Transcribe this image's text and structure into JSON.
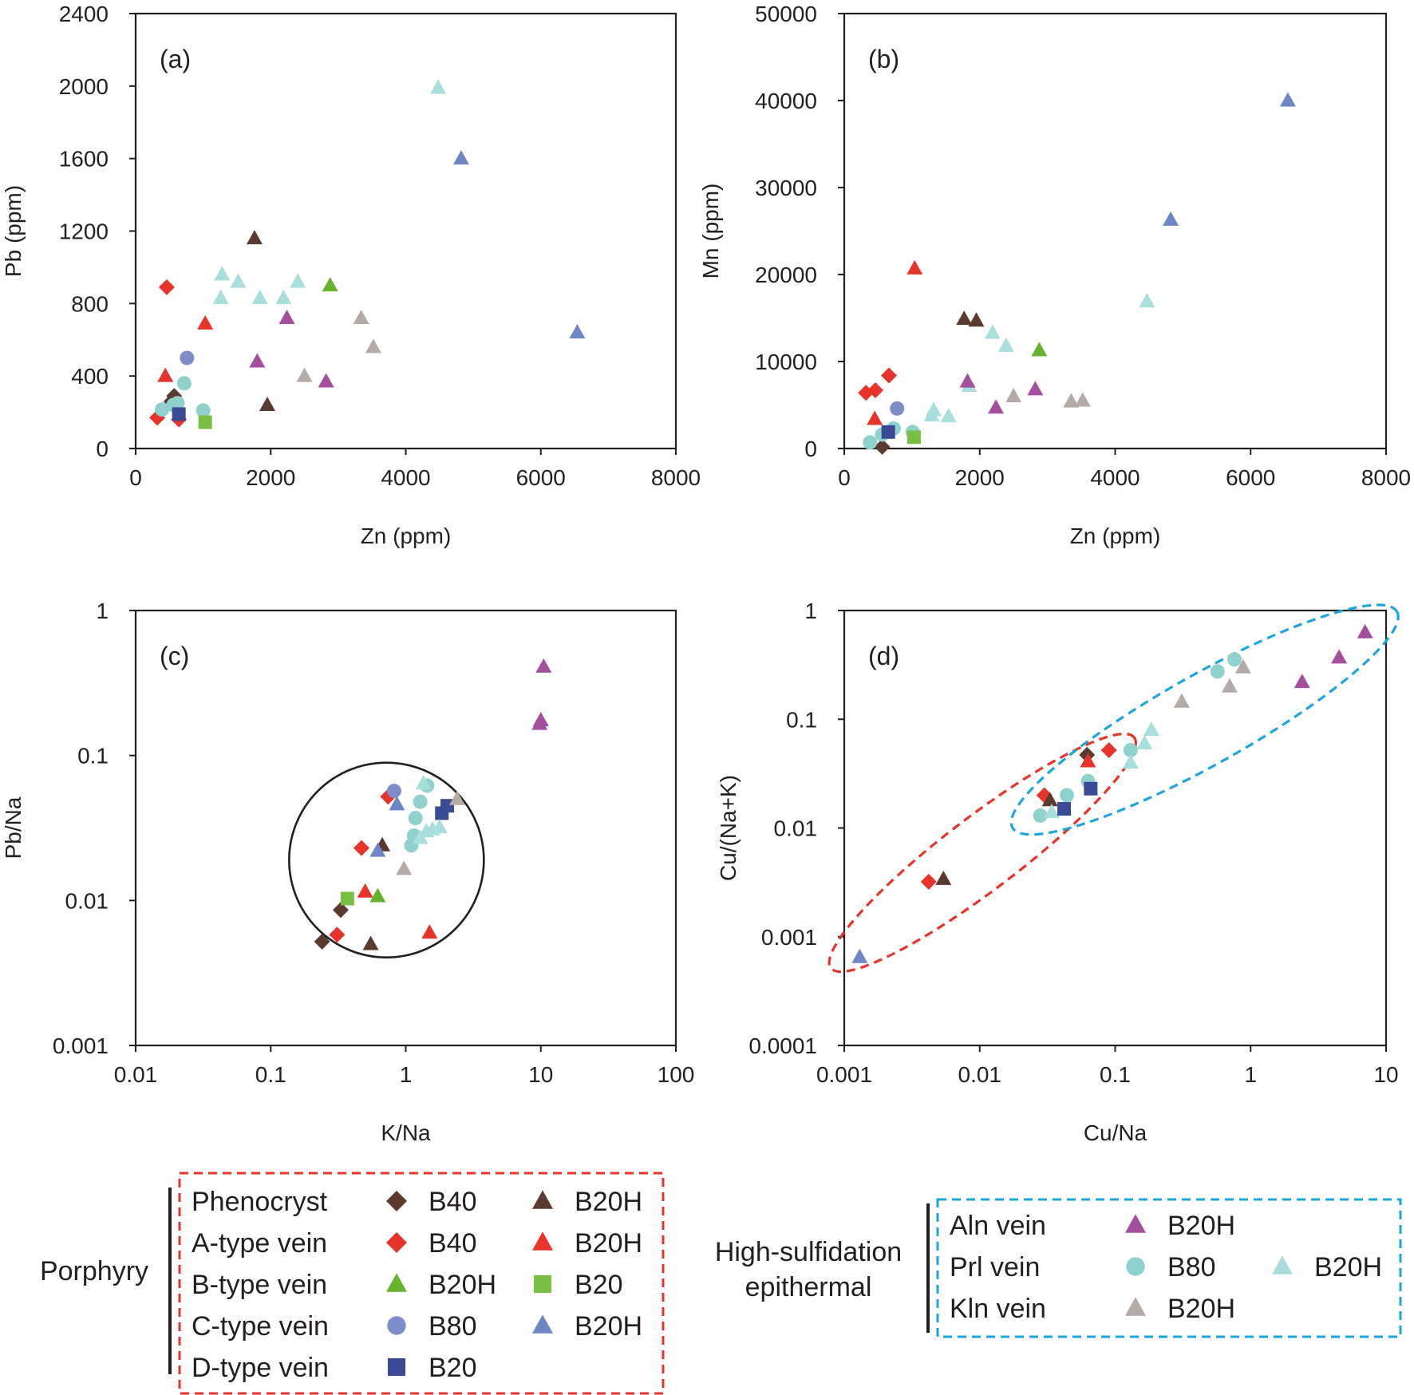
{
  "colors": {
    "phenocryst_b40": "#5b3a30",
    "a_b40": "#e8332a",
    "a_b20h": "#e8332a",
    "b_b20h": "#66b32e",
    "b_b20": "#7abf43",
    "c_b80": "#7d8dc9",
    "c_b20h": "#6f86c6",
    "d_b20": "#3a4a95",
    "phen_b20h": "#5b3a30",
    "aln_b20h": "#a34f9e",
    "prl_b80": "#8fd1cd",
    "prl_b20h": "#a8dedb",
    "kln_b20h": "#b6aaa6",
    "porphyry_box": "#e8332a",
    "epithermal_box": "#1ba6dd"
  },
  "chart_data": [
    {
      "id": "a",
      "type": "scatter",
      "panel_label": "(a)",
      "xlabel": "Zn (ppm)",
      "ylabel": "Pb (ppm)",
      "xlim": [
        0,
        8000
      ],
      "ylim": [
        0,
        2400
      ],
      "xscale": "linear",
      "yscale": "linear",
      "xticks": [
        "0",
        "2000",
        "4000",
        "6000",
        "8000"
      ],
      "yticks": [
        "0",
        "400",
        "800",
        "1200",
        "1600",
        "2000",
        "2400"
      ],
      "points": [
        {
          "x": 320,
          "y": 170,
          "m": "diamond",
          "c": "a_b40"
        },
        {
          "x": 640,
          "y": 160,
          "m": "diamond",
          "c": "a_b40"
        },
        {
          "x": 460,
          "y": 890,
          "m": "diamond",
          "c": "a_b40"
        },
        {
          "x": 530,
          "y": 260,
          "m": "diamond",
          "c": "phenocryst_b40"
        },
        {
          "x": 570,
          "y": 290,
          "m": "diamond",
          "c": "phenocryst_b40"
        },
        {
          "x": 440,
          "y": 400,
          "m": "triangle",
          "c": "a_b20h"
        },
        {
          "x": 1030,
          "y": 690,
          "m": "triangle",
          "c": "a_b20h"
        },
        {
          "x": 1760,
          "y": 1160,
          "m": "triangle",
          "c": "phen_b20h"
        },
        {
          "x": 1950,
          "y": 240,
          "m": "triangle",
          "c": "phen_b20h"
        },
        {
          "x": 560,
          "y": 240,
          "m": "circle",
          "c": "prl_b80"
        },
        {
          "x": 390,
          "y": 215,
          "m": "circle",
          "c": "prl_b80"
        },
        {
          "x": 620,
          "y": 250,
          "m": "circle",
          "c": "prl_b80"
        },
        {
          "x": 720,
          "y": 360,
          "m": "circle",
          "c": "prl_b80"
        },
        {
          "x": 1000,
          "y": 210,
          "m": "circle",
          "c": "prl_b80"
        },
        {
          "x": 760,
          "y": 500,
          "m": "circle",
          "c": "c_b80"
        },
        {
          "x": 640,
          "y": 190,
          "m": "square",
          "c": "d_b20"
        },
        {
          "x": 1030,
          "y": 145,
          "m": "square",
          "c": "b_b20"
        },
        {
          "x": 1280,
          "y": 960,
          "m": "triangle",
          "c": "prl_b20h"
        },
        {
          "x": 1260,
          "y": 830,
          "m": "triangle",
          "c": "prl_b20h"
        },
        {
          "x": 1520,
          "y": 920,
          "m": "triangle",
          "c": "prl_b20h"
        },
        {
          "x": 1840,
          "y": 830,
          "m": "triangle",
          "c": "prl_b20h"
        },
        {
          "x": 2190,
          "y": 830,
          "m": "triangle",
          "c": "prl_b20h"
        },
        {
          "x": 2400,
          "y": 920,
          "m": "triangle",
          "c": "prl_b20h"
        },
        {
          "x": 4480,
          "y": 1990,
          "m": "triangle",
          "c": "prl_b20h"
        },
        {
          "x": 1800,
          "y": 480,
          "m": "triangle",
          "c": "aln_b20h"
        },
        {
          "x": 2240,
          "y": 720,
          "m": "triangle",
          "c": "aln_b20h"
        },
        {
          "x": 2820,
          "y": 370,
          "m": "triangle",
          "c": "aln_b20h"
        },
        {
          "x": 2500,
          "y": 400,
          "m": "triangle",
          "c": "kln_b20h"
        },
        {
          "x": 3340,
          "y": 720,
          "m": "triangle",
          "c": "kln_b20h"
        },
        {
          "x": 3520,
          "y": 560,
          "m": "triangle",
          "c": "kln_b20h"
        },
        {
          "x": 2880,
          "y": 900,
          "m": "triangle",
          "c": "b_b20h"
        },
        {
          "x": 4820,
          "y": 1600,
          "m": "triangle",
          "c": "c_b20h"
        },
        {
          "x": 6540,
          "y": 640,
          "m": "triangle",
          "c": "c_b20h"
        }
      ]
    },
    {
      "id": "b",
      "type": "scatter",
      "panel_label": "(b)",
      "xlabel": "Zn (ppm)",
      "ylabel": "Mn (ppm)",
      "xlim": [
        0,
        8000
      ],
      "ylim": [
        0,
        50000
      ],
      "xscale": "linear",
      "yscale": "linear",
      "xticks": [
        "0",
        "2000",
        "4000",
        "6000",
        "8000"
      ],
      "yticks": [
        "0",
        "10000",
        "20000",
        "30000",
        "40000",
        "50000"
      ],
      "points": [
        {
          "x": 320,
          "y": 6400,
          "m": "diamond",
          "c": "a_b40"
        },
        {
          "x": 460,
          "y": 6700,
          "m": "diamond",
          "c": "a_b40"
        },
        {
          "x": 660,
          "y": 8400,
          "m": "diamond",
          "c": "a_b40"
        },
        {
          "x": 450,
          "y": 3400,
          "m": "triangle",
          "c": "a_b20h"
        },
        {
          "x": 1040,
          "y": 20700,
          "m": "triangle",
          "c": "a_b20h"
        },
        {
          "x": 560,
          "y": 200,
          "m": "diamond",
          "c": "phenocryst_b40"
        },
        {
          "x": 1770,
          "y": 14900,
          "m": "triangle",
          "c": "phen_b20h"
        },
        {
          "x": 1950,
          "y": 14700,
          "m": "triangle",
          "c": "phen_b20h"
        },
        {
          "x": 380,
          "y": 700,
          "m": "circle",
          "c": "prl_b80"
        },
        {
          "x": 560,
          "y": 1600,
          "m": "circle",
          "c": "prl_b80"
        },
        {
          "x": 730,
          "y": 2300,
          "m": "circle",
          "c": "prl_b80"
        },
        {
          "x": 1010,
          "y": 1900,
          "m": "circle",
          "c": "prl_b80"
        },
        {
          "x": 780,
          "y": 4600,
          "m": "circle",
          "c": "c_b80"
        },
        {
          "x": 650,
          "y": 1900,
          "m": "square",
          "c": "d_b20"
        },
        {
          "x": 1030,
          "y": 1300,
          "m": "square",
          "c": "b_b20"
        },
        {
          "x": 1290,
          "y": 3800,
          "m": "triangle",
          "c": "prl_b20h"
        },
        {
          "x": 1320,
          "y": 4400,
          "m": "triangle",
          "c": "prl_b20h"
        },
        {
          "x": 1540,
          "y": 3700,
          "m": "triangle",
          "c": "prl_b20h"
        },
        {
          "x": 1840,
          "y": 7200,
          "m": "triangle",
          "c": "prl_b20h"
        },
        {
          "x": 2190,
          "y": 13300,
          "m": "triangle",
          "c": "prl_b20h"
        },
        {
          "x": 2390,
          "y": 11800,
          "m": "triangle",
          "c": "prl_b20h"
        },
        {
          "x": 4470,
          "y": 16900,
          "m": "triangle",
          "c": "prl_b20h"
        },
        {
          "x": 1820,
          "y": 7700,
          "m": "triangle",
          "c": "aln_b20h"
        },
        {
          "x": 2240,
          "y": 4700,
          "m": "triangle",
          "c": "aln_b20h"
        },
        {
          "x": 2820,
          "y": 6800,
          "m": "triangle",
          "c": "aln_b20h"
        },
        {
          "x": 2500,
          "y": 6000,
          "m": "triangle",
          "c": "kln_b20h"
        },
        {
          "x": 3350,
          "y": 5400,
          "m": "triangle",
          "c": "kln_b20h"
        },
        {
          "x": 3520,
          "y": 5500,
          "m": "triangle",
          "c": "kln_b20h"
        },
        {
          "x": 2880,
          "y": 11300,
          "m": "triangle",
          "c": "b_b20h"
        },
        {
          "x": 4820,
          "y": 26300,
          "m": "triangle",
          "c": "c_b20h"
        },
        {
          "x": 6550,
          "y": 40000,
          "m": "triangle",
          "c": "c_b20h"
        }
      ]
    },
    {
      "id": "c",
      "type": "scatter",
      "panel_label": "(c)",
      "xlabel": "K/Na",
      "ylabel": "Pb/Na",
      "xlim": [
        0.01,
        100
      ],
      "ylim": [
        0.001,
        1
      ],
      "xscale": "log",
      "yscale": "log",
      "xticks": [
        "0.01",
        "0.1",
        "1",
        "10",
        "100"
      ],
      "yticks": [
        "0.001",
        "0.01",
        "0.1",
        "1"
      ],
      "points": [
        {
          "x": 0.24,
          "y": 0.0052,
          "m": "diamond",
          "c": "phenocryst_b40"
        },
        {
          "x": 0.33,
          "y": 0.0086,
          "m": "diamond",
          "c": "phenocryst_b40"
        },
        {
          "x": 0.31,
          "y": 0.0058,
          "m": "diamond",
          "c": "a_b40"
        },
        {
          "x": 0.47,
          "y": 0.023,
          "m": "diamond",
          "c": "a_b40"
        },
        {
          "x": 0.74,
          "y": 0.052,
          "m": "diamond",
          "c": "a_b40"
        },
        {
          "x": 0.5,
          "y": 0.0115,
          "m": "triangle",
          "c": "a_b20h"
        },
        {
          "x": 1.5,
          "y": 0.006,
          "m": "triangle",
          "c": "a_b20h"
        },
        {
          "x": 0.55,
          "y": 0.005,
          "m": "triangle",
          "c": "phen_b20h"
        },
        {
          "x": 0.67,
          "y": 0.024,
          "m": "triangle",
          "c": "phen_b20h"
        },
        {
          "x": 0.62,
          "y": 0.0107,
          "m": "triangle",
          "c": "b_b20h"
        },
        {
          "x": 0.37,
          "y": 0.0103,
          "m": "square",
          "c": "b_b20"
        },
        {
          "x": 0.82,
          "y": 0.057,
          "m": "circle",
          "c": "c_b80"
        },
        {
          "x": 0.86,
          "y": 0.046,
          "m": "triangle",
          "c": "c_b20h"
        },
        {
          "x": 0.62,
          "y": 0.022,
          "m": "triangle",
          "c": "c_b20h"
        },
        {
          "x": 1.85,
          "y": 0.04,
          "m": "square",
          "c": "d_b20"
        },
        {
          "x": 2.03,
          "y": 0.045,
          "m": "square",
          "c": "d_b20"
        },
        {
          "x": 1.1,
          "y": 0.024,
          "m": "circle",
          "c": "prl_b80"
        },
        {
          "x": 1.15,
          "y": 0.028,
          "m": "circle",
          "c": "prl_b80"
        },
        {
          "x": 1.18,
          "y": 0.037,
          "m": "circle",
          "c": "prl_b80"
        },
        {
          "x": 1.28,
          "y": 0.048,
          "m": "circle",
          "c": "prl_b80"
        },
        {
          "x": 1.44,
          "y": 0.062,
          "m": "circle",
          "c": "prl_b80"
        },
        {
          "x": 1.28,
          "y": 0.027,
          "m": "triangle",
          "c": "prl_b20h"
        },
        {
          "x": 1.42,
          "y": 0.03,
          "m": "triangle",
          "c": "prl_b20h"
        },
        {
          "x": 1.58,
          "y": 0.031,
          "m": "triangle",
          "c": "prl_b20h"
        },
        {
          "x": 1.78,
          "y": 0.032,
          "m": "triangle",
          "c": "prl_b20h"
        },
        {
          "x": 1.35,
          "y": 0.064,
          "m": "triangle",
          "c": "prl_b20h"
        },
        {
          "x": 0.97,
          "y": 0.0165,
          "m": "triangle",
          "c": "kln_b20h"
        },
        {
          "x": 2.4,
          "y": 0.05,
          "m": "triangle",
          "c": "kln_b20h"
        },
        {
          "x": 9.8,
          "y": 0.165,
          "m": "triangle",
          "c": "aln_b20h"
        },
        {
          "x": 10.0,
          "y": 0.175,
          "m": "triangle",
          "c": "aln_b20h"
        },
        {
          "x": 10.5,
          "y": 0.41,
          "m": "triangle",
          "c": "aln_b20h"
        }
      ]
    },
    {
      "id": "d",
      "type": "scatter",
      "panel_label": "(d)",
      "xlabel": "Cu/Na",
      "ylabel": "Cu/(Na+K)",
      "xlim": [
        0.001,
        10
      ],
      "ylim": [
        0.0001,
        1
      ],
      "xscale": "log",
      "yscale": "log",
      "xticks": [
        "0.001",
        "0.01",
        "0.1",
        "1",
        "10"
      ],
      "yticks": [
        "0.0001",
        "0.001",
        "0.01",
        "0.1",
        "1"
      ],
      "points": [
        {
          "x": 0.0013,
          "y": 0.00065,
          "m": "triangle",
          "c": "c_b20h"
        },
        {
          "x": 0.0042,
          "y": 0.0032,
          "m": "diamond",
          "c": "a_b40"
        },
        {
          "x": 0.0054,
          "y": 0.0034,
          "m": "triangle",
          "c": "phen_b20h"
        },
        {
          "x": 0.03,
          "y": 0.02,
          "m": "diamond",
          "c": "a_b40"
        },
        {
          "x": 0.033,
          "y": 0.018,
          "m": "triangle",
          "c": "phen_b20h"
        },
        {
          "x": 0.028,
          "y": 0.013,
          "m": "circle",
          "c": "prl_b80"
        },
        {
          "x": 0.034,
          "y": 0.014,
          "m": "triangle",
          "c": "prl_b20h"
        },
        {
          "x": 0.044,
          "y": 0.02,
          "m": "circle",
          "c": "prl_b80"
        },
        {
          "x": 0.042,
          "y": 0.015,
          "m": "square",
          "c": "d_b20"
        },
        {
          "x": 0.062,
          "y": 0.047,
          "m": "diamond",
          "c": "phenocryst_b40"
        },
        {
          "x": 0.063,
          "y": 0.041,
          "m": "triangle",
          "c": "a_b20h"
        },
        {
          "x": 0.09,
          "y": 0.052,
          "m": "diamond",
          "c": "a_b40"
        },
        {
          "x": 0.063,
          "y": 0.027,
          "m": "circle",
          "c": "prl_b80"
        },
        {
          "x": 0.066,
          "y": 0.023,
          "m": "square",
          "c": "d_b20"
        },
        {
          "x": 0.13,
          "y": 0.052,
          "m": "circle",
          "c": "prl_b80"
        },
        {
          "x": 0.13,
          "y": 0.04,
          "m": "triangle",
          "c": "prl_b20h"
        },
        {
          "x": 0.165,
          "y": 0.06,
          "m": "triangle",
          "c": "prl_b20h"
        },
        {
          "x": 0.185,
          "y": 0.08,
          "m": "triangle",
          "c": "prl_b20h"
        },
        {
          "x": 0.31,
          "y": 0.145,
          "m": "triangle",
          "c": "kln_b20h"
        },
        {
          "x": 0.57,
          "y": 0.275,
          "m": "circle",
          "c": "prl_b80"
        },
        {
          "x": 0.76,
          "y": 0.355,
          "m": "circle",
          "c": "prl_b80"
        },
        {
          "x": 0.7,
          "y": 0.2,
          "m": "triangle",
          "c": "kln_b20h"
        },
        {
          "x": 0.88,
          "y": 0.3,
          "m": "triangle",
          "c": "kln_b20h"
        },
        {
          "x": 2.4,
          "y": 0.22,
          "m": "triangle",
          "c": "aln_b20h"
        },
        {
          "x": 4.5,
          "y": 0.37,
          "m": "triangle",
          "c": "aln_b20h"
        },
        {
          "x": 7.0,
          "y": 0.63,
          "m": "triangle",
          "c": "aln_b20h"
        }
      ]
    }
  ],
  "legend": {
    "porphyry": {
      "title": "Porphyry",
      "rows": [
        {
          "label": "Phenocryst",
          "s1": {
            "m": "diamond",
            "c": "phenocryst_b40",
            "t": "B40"
          },
          "s2": {
            "m": "triangle",
            "c": "phen_b20h",
            "t": "B20H"
          }
        },
        {
          "label": "A-type vein",
          "s1": {
            "m": "diamond",
            "c": "a_b40",
            "t": "B40"
          },
          "s2": {
            "m": "triangle",
            "c": "a_b20h",
            "t": "B20H"
          }
        },
        {
          "label": "B-type vein",
          "s1": {
            "m": "triangle",
            "c": "b_b20h",
            "t": "B20H"
          },
          "s2": {
            "m": "square",
            "c": "b_b20",
            "t": "B20"
          }
        },
        {
          "label": "C-type vein",
          "s1": {
            "m": "circle",
            "c": "c_b80",
            "t": "B80"
          },
          "s2": {
            "m": "triangle",
            "c": "c_b20h",
            "t": "B20H"
          }
        },
        {
          "label": "D-type vein",
          "s1": {
            "m": "square",
            "c": "d_b20",
            "t": "B20"
          },
          "s2": null
        }
      ]
    },
    "epithermal": {
      "title_line1": "High-sulfidation",
      "title_line2": "epithermal",
      "rows": [
        {
          "label": "Aln vein",
          "s1": {
            "m": "triangle",
            "c": "aln_b20h",
            "t": "B20H"
          },
          "s2": null
        },
        {
          "label": "Prl vein",
          "s1": {
            "m": "circle",
            "c": "prl_b80",
            "t": "B80"
          },
          "s2": {
            "m": "triangle",
            "c": "prl_b20h",
            "t": "B20H"
          }
        },
        {
          "label": "Kln vein",
          "s1": {
            "m": "triangle",
            "c": "kln_b20h",
            "t": "B20H"
          },
          "s2": null
        }
      ]
    }
  }
}
